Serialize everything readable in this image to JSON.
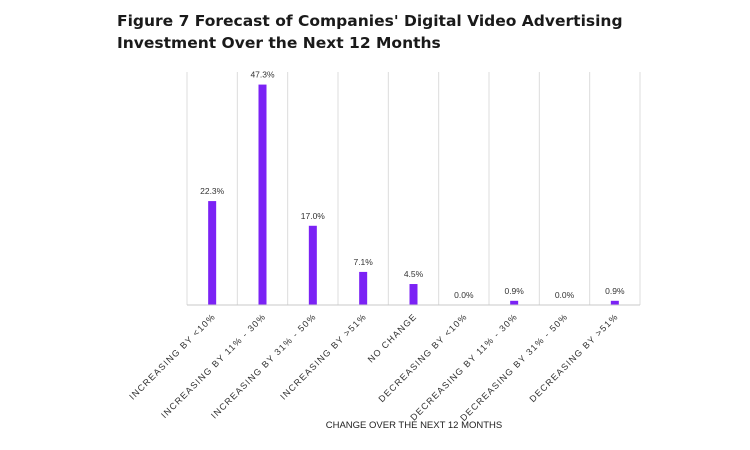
{
  "title": "Figure 7 Forecast of Companies' Digital Video Advertising Investment Over the Next 12 Months",
  "chart_data": {
    "type": "bar",
    "title": "Figure 7 Forecast of Companies' Digital Video Advertising Investment Over the Next 12 Months",
    "xlabel": "CHANGE OVER THE NEXT 12 MONTHS",
    "ylabel": "",
    "categories": [
      "INCREASING BY <10%",
      "INCREASING BY 11% - 30%",
      "INCREASING BY 31% - 50%",
      "INCREASING BY >51%",
      "NO CHANGE",
      "DECREASING BY <10%",
      "DECREASING BY 11% - 30%",
      "DECREASING BY 31% - 50%",
      "DECREASING BY >51%"
    ],
    "values": [
      22.3,
      47.3,
      17.0,
      7.1,
      4.5,
      0.0,
      0.9,
      0.0,
      0.9
    ],
    "value_labels": [
      "22.3%",
      "47.3%",
      "17.0%",
      "7.1%",
      "4.5%",
      "0.0%",
      "0.9%",
      "0.0%",
      "0.9%"
    ],
    "ylim": [
      0,
      50
    ],
    "grid": "vertical",
    "bar_color": "#7b22f5"
  }
}
